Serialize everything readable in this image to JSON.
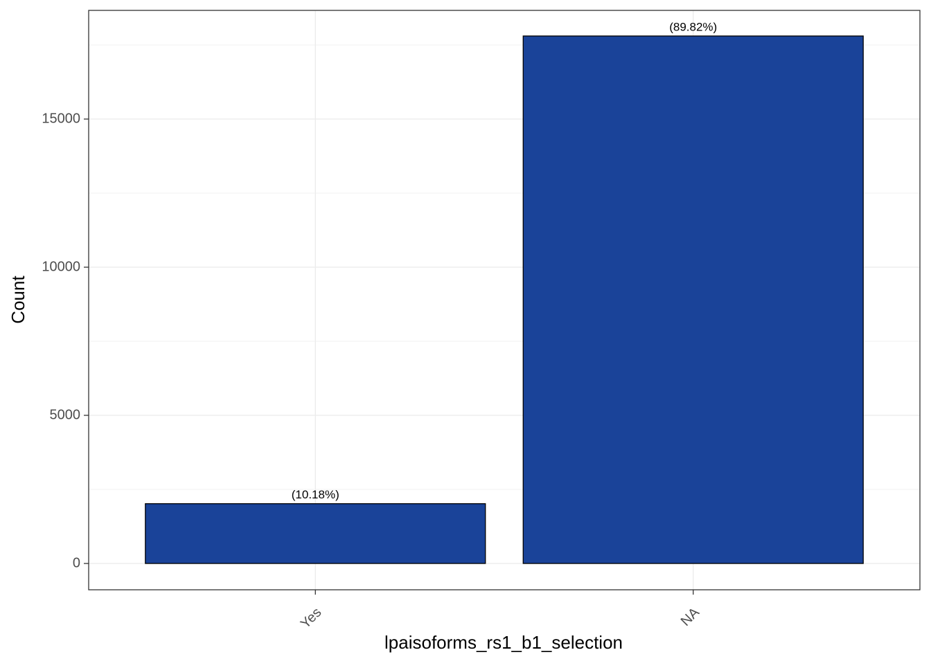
{
  "chart_data": {
    "type": "bar",
    "x_label": "lpaisoforms_rs1_b1_selection",
    "y_label": "Count",
    "categories": [
      "Yes",
      "NA"
    ],
    "values": [
      2018,
      17804
    ],
    "annotations": [
      "(10.18%)",
      "(89.82%)"
    ],
    "color": "#1a4399",
    "ylim": [
      -888,
      18668
    ],
    "yticks": [
      0,
      5000,
      10000,
      15000
    ],
    "grid": true
  }
}
